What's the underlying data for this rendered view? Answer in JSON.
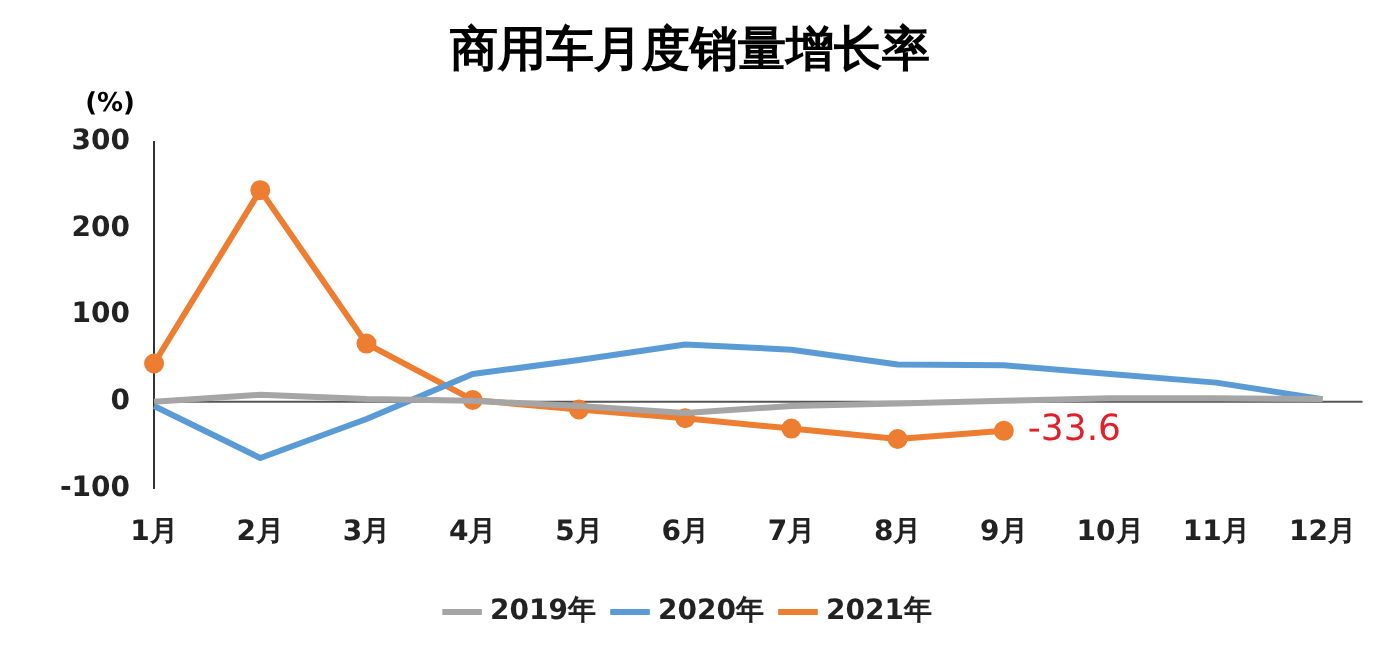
{
  "chart_data": {
    "type": "line",
    "title": "商用车月度销量增长率",
    "ylabel": "(%)",
    "categories": [
      "1月",
      "2月",
      "3月",
      "4月",
      "5月",
      "6月",
      "7月",
      "8月",
      "9月",
      "10月",
      "11月",
      "12月"
    ],
    "series": [
      {
        "name": "2019年",
        "color": "#a5a5a5",
        "marker": "none",
        "values": [
          0,
          8,
          3,
          1,
          -5,
          -13,
          -5,
          -2,
          1,
          4,
          4,
          3
        ]
      },
      {
        "name": "2020年",
        "color": "#5b9bd5",
        "marker": "none",
        "values": [
          -5,
          -65,
          -20,
          32,
          48,
          66,
          60,
          43,
          42,
          32,
          22,
          3
        ]
      },
      {
        "name": "2021年",
        "color": "#ed7d31",
        "marker": "circle",
        "values": [
          44,
          244,
          67,
          2,
          -9,
          -19,
          -31,
          -43,
          -33.6,
          null,
          null,
          null
        ]
      }
    ],
    "annotations": [
      {
        "text": "-33.6",
        "x": "9月",
        "y": -33.6
      }
    ],
    "ref_lines": [
      {
        "axis": "y",
        "value": 0,
        "color": "#555555"
      }
    ],
    "ylim": [
      -100,
      300
    ],
    "yticks": [
      -100,
      0,
      100,
      200,
      300
    ],
    "grid": false,
    "legend": "bottom"
  }
}
